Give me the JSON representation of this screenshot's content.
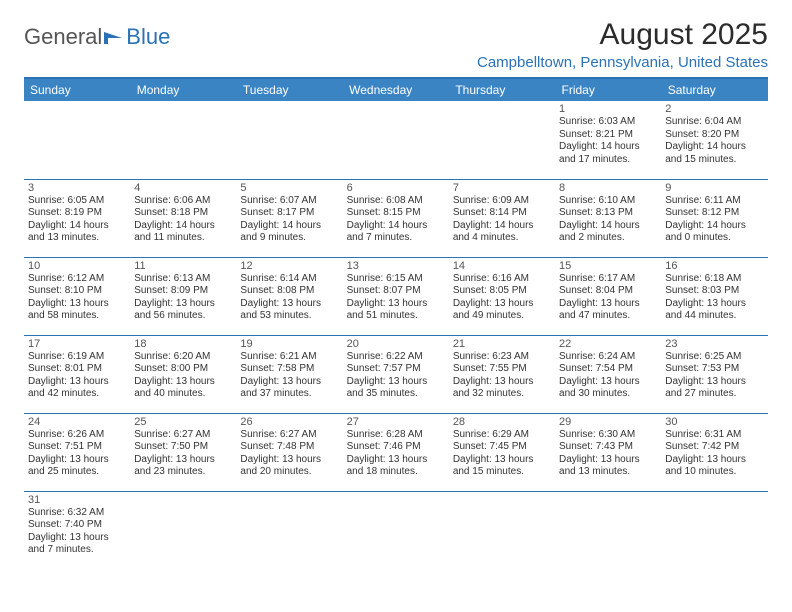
{
  "logo": {
    "text1": "General",
    "text2": "Blue"
  },
  "title": "August 2025",
  "location": "Campbelltown, Pennsylvania, United States",
  "colors": {
    "brand_blue": "#2a72b5",
    "header_blue": "#3a84c4",
    "text": "#333333"
  },
  "weekdays": [
    "Sunday",
    "Monday",
    "Tuesday",
    "Wednesday",
    "Thursday",
    "Friday",
    "Saturday"
  ],
  "weeks": [
    [
      null,
      null,
      null,
      null,
      null,
      {
        "d": "1",
        "sr": "Sunrise: 6:03 AM",
        "ss": "Sunset: 8:21 PM",
        "dl1": "Daylight: 14 hours",
        "dl2": "and 17 minutes."
      },
      {
        "d": "2",
        "sr": "Sunrise: 6:04 AM",
        "ss": "Sunset: 8:20 PM",
        "dl1": "Daylight: 14 hours",
        "dl2": "and 15 minutes."
      }
    ],
    [
      {
        "d": "3",
        "sr": "Sunrise: 6:05 AM",
        "ss": "Sunset: 8:19 PM",
        "dl1": "Daylight: 14 hours",
        "dl2": "and 13 minutes."
      },
      {
        "d": "4",
        "sr": "Sunrise: 6:06 AM",
        "ss": "Sunset: 8:18 PM",
        "dl1": "Daylight: 14 hours",
        "dl2": "and 11 minutes."
      },
      {
        "d": "5",
        "sr": "Sunrise: 6:07 AM",
        "ss": "Sunset: 8:17 PM",
        "dl1": "Daylight: 14 hours",
        "dl2": "and 9 minutes."
      },
      {
        "d": "6",
        "sr": "Sunrise: 6:08 AM",
        "ss": "Sunset: 8:15 PM",
        "dl1": "Daylight: 14 hours",
        "dl2": "and 7 minutes."
      },
      {
        "d": "7",
        "sr": "Sunrise: 6:09 AM",
        "ss": "Sunset: 8:14 PM",
        "dl1": "Daylight: 14 hours",
        "dl2": "and 4 minutes."
      },
      {
        "d": "8",
        "sr": "Sunrise: 6:10 AM",
        "ss": "Sunset: 8:13 PM",
        "dl1": "Daylight: 14 hours",
        "dl2": "and 2 minutes."
      },
      {
        "d": "9",
        "sr": "Sunrise: 6:11 AM",
        "ss": "Sunset: 8:12 PM",
        "dl1": "Daylight: 14 hours",
        "dl2": "and 0 minutes."
      }
    ],
    [
      {
        "d": "10",
        "sr": "Sunrise: 6:12 AM",
        "ss": "Sunset: 8:10 PM",
        "dl1": "Daylight: 13 hours",
        "dl2": "and 58 minutes."
      },
      {
        "d": "11",
        "sr": "Sunrise: 6:13 AM",
        "ss": "Sunset: 8:09 PM",
        "dl1": "Daylight: 13 hours",
        "dl2": "and 56 minutes."
      },
      {
        "d": "12",
        "sr": "Sunrise: 6:14 AM",
        "ss": "Sunset: 8:08 PM",
        "dl1": "Daylight: 13 hours",
        "dl2": "and 53 minutes."
      },
      {
        "d": "13",
        "sr": "Sunrise: 6:15 AM",
        "ss": "Sunset: 8:07 PM",
        "dl1": "Daylight: 13 hours",
        "dl2": "and 51 minutes."
      },
      {
        "d": "14",
        "sr": "Sunrise: 6:16 AM",
        "ss": "Sunset: 8:05 PM",
        "dl1": "Daylight: 13 hours",
        "dl2": "and 49 minutes."
      },
      {
        "d": "15",
        "sr": "Sunrise: 6:17 AM",
        "ss": "Sunset: 8:04 PM",
        "dl1": "Daylight: 13 hours",
        "dl2": "and 47 minutes."
      },
      {
        "d": "16",
        "sr": "Sunrise: 6:18 AM",
        "ss": "Sunset: 8:03 PM",
        "dl1": "Daylight: 13 hours",
        "dl2": "and 44 minutes."
      }
    ],
    [
      {
        "d": "17",
        "sr": "Sunrise: 6:19 AM",
        "ss": "Sunset: 8:01 PM",
        "dl1": "Daylight: 13 hours",
        "dl2": "and 42 minutes."
      },
      {
        "d": "18",
        "sr": "Sunrise: 6:20 AM",
        "ss": "Sunset: 8:00 PM",
        "dl1": "Daylight: 13 hours",
        "dl2": "and 40 minutes."
      },
      {
        "d": "19",
        "sr": "Sunrise: 6:21 AM",
        "ss": "Sunset: 7:58 PM",
        "dl1": "Daylight: 13 hours",
        "dl2": "and 37 minutes."
      },
      {
        "d": "20",
        "sr": "Sunrise: 6:22 AM",
        "ss": "Sunset: 7:57 PM",
        "dl1": "Daylight: 13 hours",
        "dl2": "and 35 minutes."
      },
      {
        "d": "21",
        "sr": "Sunrise: 6:23 AM",
        "ss": "Sunset: 7:55 PM",
        "dl1": "Daylight: 13 hours",
        "dl2": "and 32 minutes."
      },
      {
        "d": "22",
        "sr": "Sunrise: 6:24 AM",
        "ss": "Sunset: 7:54 PM",
        "dl1": "Daylight: 13 hours",
        "dl2": "and 30 minutes."
      },
      {
        "d": "23",
        "sr": "Sunrise: 6:25 AM",
        "ss": "Sunset: 7:53 PM",
        "dl1": "Daylight: 13 hours",
        "dl2": "and 27 minutes."
      }
    ],
    [
      {
        "d": "24",
        "sr": "Sunrise: 6:26 AM",
        "ss": "Sunset: 7:51 PM",
        "dl1": "Daylight: 13 hours",
        "dl2": "and 25 minutes."
      },
      {
        "d": "25",
        "sr": "Sunrise: 6:27 AM",
        "ss": "Sunset: 7:50 PM",
        "dl1": "Daylight: 13 hours",
        "dl2": "and 23 minutes."
      },
      {
        "d": "26",
        "sr": "Sunrise: 6:27 AM",
        "ss": "Sunset: 7:48 PM",
        "dl1": "Daylight: 13 hours",
        "dl2": "and 20 minutes."
      },
      {
        "d": "27",
        "sr": "Sunrise: 6:28 AM",
        "ss": "Sunset: 7:46 PM",
        "dl1": "Daylight: 13 hours",
        "dl2": "and 18 minutes."
      },
      {
        "d": "28",
        "sr": "Sunrise: 6:29 AM",
        "ss": "Sunset: 7:45 PM",
        "dl1": "Daylight: 13 hours",
        "dl2": "and 15 minutes."
      },
      {
        "d": "29",
        "sr": "Sunrise: 6:30 AM",
        "ss": "Sunset: 7:43 PM",
        "dl1": "Daylight: 13 hours",
        "dl2": "and 13 minutes."
      },
      {
        "d": "30",
        "sr": "Sunrise: 6:31 AM",
        "ss": "Sunset: 7:42 PM",
        "dl1": "Daylight: 13 hours",
        "dl2": "and 10 minutes."
      }
    ],
    [
      {
        "d": "31",
        "sr": "Sunrise: 6:32 AM",
        "ss": "Sunset: 7:40 PM",
        "dl1": "Daylight: 13 hours",
        "dl2": "and 7 minutes."
      },
      null,
      null,
      null,
      null,
      null,
      null
    ]
  ]
}
